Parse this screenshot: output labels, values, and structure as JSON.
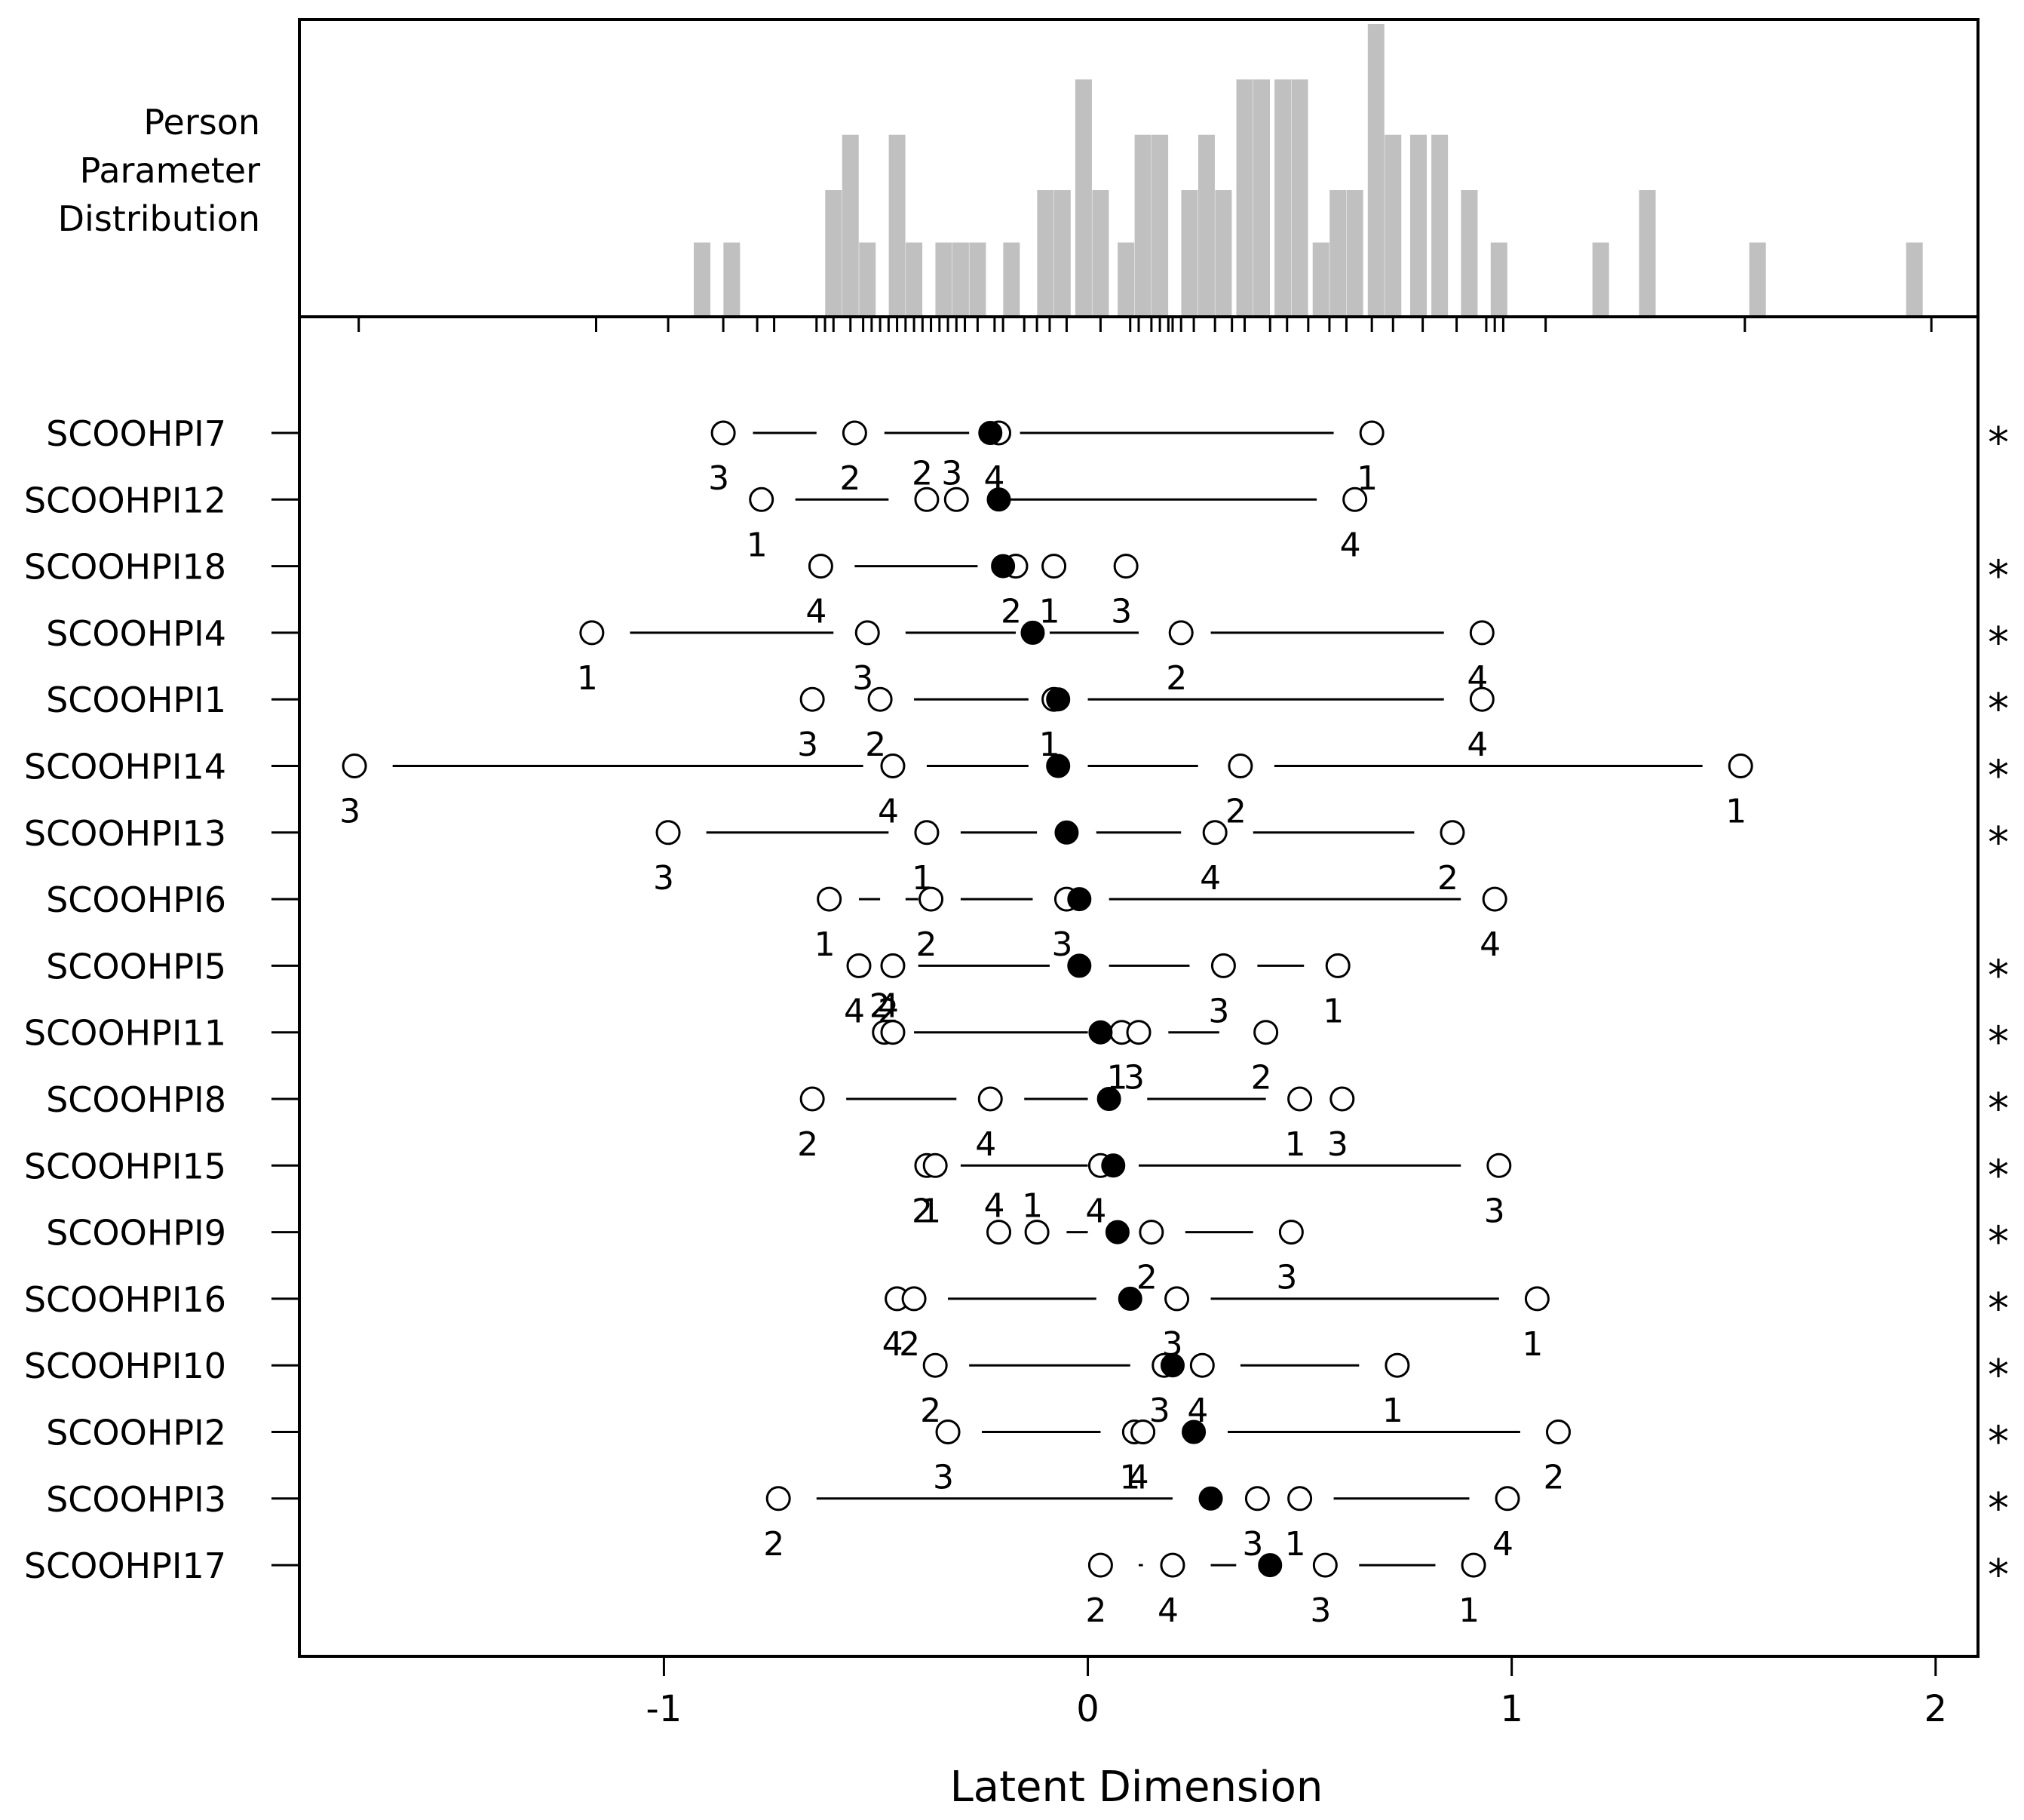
{
  "chart_data": {
    "type": "scatter",
    "title": "",
    "xlabel": "Latent Dimension",
    "ylabel": "",
    "xlim": [
      -1.86,
      2.1
    ],
    "xticks": [
      -1,
      0,
      1,
      2
    ],
    "person_parameter_label": [
      "Person",
      "Parameter",
      "Distribution"
    ],
    "person_distribution": [
      {
        "x": -0.91,
        "h": 0.25
      },
      {
        "x": -0.84,
        "h": 0.25
      },
      {
        "x": -0.6,
        "h": 0.43
      },
      {
        "x": -0.56,
        "h": 0.62
      },
      {
        "x": -0.52,
        "h": 0.25
      },
      {
        "x": -0.45,
        "h": 0.62
      },
      {
        "x": -0.41,
        "h": 0.25
      },
      {
        "x": -0.34,
        "h": 0.25
      },
      {
        "x": -0.3,
        "h": 0.25
      },
      {
        "x": -0.26,
        "h": 0.25
      },
      {
        "x": -0.18,
        "h": 0.25
      },
      {
        "x": -0.1,
        "h": 0.43
      },
      {
        "x": -0.06,
        "h": 0.43
      },
      {
        "x": -0.01,
        "h": 0.81
      },
      {
        "x": 0.03,
        "h": 0.43
      },
      {
        "x": 0.09,
        "h": 0.25
      },
      {
        "x": 0.13,
        "h": 0.62
      },
      {
        "x": 0.17,
        "h": 0.62
      },
      {
        "x": 0.24,
        "h": 0.43
      },
      {
        "x": 0.28,
        "h": 0.62
      },
      {
        "x": 0.32,
        "h": 0.43
      },
      {
        "x": 0.37,
        "h": 0.81
      },
      {
        "x": 0.41,
        "h": 0.81
      },
      {
        "x": 0.46,
        "h": 0.81
      },
      {
        "x": 0.5,
        "h": 0.81
      },
      {
        "x": 0.55,
        "h": 0.25
      },
      {
        "x": 0.59,
        "h": 0.43
      },
      {
        "x": 0.63,
        "h": 0.43
      },
      {
        "x": 0.68,
        "h": 1.0
      },
      {
        "x": 0.72,
        "h": 0.62
      },
      {
        "x": 0.78,
        "h": 0.62
      },
      {
        "x": 0.83,
        "h": 0.62
      },
      {
        "x": 0.9,
        "h": 0.43
      },
      {
        "x": 0.97,
        "h": 0.25
      },
      {
        "x": 1.21,
        "h": 0.25
      },
      {
        "x": 1.32,
        "h": 0.43
      },
      {
        "x": 1.58,
        "h": 0.25
      },
      {
        "x": 1.95,
        "h": 0.25
      }
    ],
    "person_ticks": [
      -1.72,
      -1.16,
      -0.99,
      -0.86,
      -0.78,
      -0.74,
      -0.64,
      -0.62,
      -0.6,
      -0.56,
      -0.53,
      -0.51,
      -0.49,
      -0.47,
      -0.45,
      -0.43,
      -0.41,
      -0.39,
      -0.37,
      -0.35,
      -0.33,
      -0.31,
      -0.29,
      -0.26,
      -0.22,
      -0.2,
      -0.15,
      -0.12,
      -0.09,
      -0.05,
      0.03,
      0.1,
      0.12,
      0.15,
      0.17,
      0.19,
      0.2,
      0.22,
      0.25,
      0.3,
      0.34,
      0.37,
      0.43,
      0.47,
      0.52,
      0.57,
      0.61,
      0.67,
      0.72,
      0.79,
      0.87,
      0.94,
      0.96,
      0.98,
      1.08,
      1.55,
      1.99
    ],
    "items": [
      {
        "name": "SCOOHPI7",
        "mean": -0.23,
        "star": true,
        "segments": [
          [
            -0.79,
            -0.64
          ],
          [
            -0.48,
            -0.28
          ],
          [
            -0.16,
            0.58
          ]
        ],
        "thresholds": [
          {
            "x": -0.86,
            "label": "3",
            "pos": "below"
          },
          {
            "x": -0.55,
            "label": "2",
            "pos": "below"
          },
          {
            "x": -0.21,
            "label": "4",
            "pos": "below"
          },
          {
            "x": 0.67,
            "label": "1",
            "pos": "below"
          }
        ]
      },
      {
        "name": "SCOOHPI12",
        "mean": -0.21,
        "star": false,
        "segments": [
          [
            -0.69,
            -0.47
          ],
          [
            -0.19,
            0.54
          ]
        ],
        "thresholds": [
          {
            "x": -0.77,
            "label": "1",
            "pos": "below"
          },
          {
            "x": -0.38,
            "label": "2",
            "pos": "above"
          },
          {
            "x": -0.31,
            "label": "3",
            "pos": "above"
          },
          {
            "x": 0.63,
            "label": "4",
            "pos": "below"
          }
        ]
      },
      {
        "name": "SCOOHPI18",
        "mean": -0.2,
        "star": true,
        "segments": [
          [
            -0.55,
            -0.26
          ]
        ],
        "thresholds": [
          {
            "x": -0.63,
            "label": "4",
            "pos": "below"
          },
          {
            "x": -0.17,
            "label": "2",
            "pos": "below"
          },
          {
            "x": -0.08,
            "label": "1",
            "pos": "below"
          },
          {
            "x": 0.09,
            "label": "3",
            "pos": "below"
          }
        ]
      },
      {
        "name": "SCOOHPI4",
        "mean": -0.13,
        "star": true,
        "segments": [
          [
            -1.08,
            -0.6
          ],
          [
            -0.43,
            -0.17
          ],
          [
            -0.09,
            0.12
          ],
          [
            0.29,
            0.84
          ]
        ],
        "thresholds": [
          {
            "x": -1.17,
            "label": "1",
            "pos": "below"
          },
          {
            "x": -0.52,
            "label": "3",
            "pos": "below"
          },
          {
            "x": 0.22,
            "label": "2",
            "pos": "below"
          },
          {
            "x": 0.93,
            "label": "4",
            "pos": "below"
          }
        ]
      },
      {
        "name": "SCOOHPI1",
        "mean": -0.07,
        "star": true,
        "segments": [
          [
            -0.41,
            -0.14
          ],
          [
            0.0,
            0.84
          ]
        ],
        "thresholds": [
          {
            "x": -0.65,
            "label": "3",
            "pos": "below"
          },
          {
            "x": -0.49,
            "label": "2",
            "pos": "below"
          },
          {
            "x": -0.08,
            "label": "1",
            "pos": "below"
          },
          {
            "x": 0.93,
            "label": "4",
            "pos": "below"
          }
        ]
      },
      {
        "name": "SCOOHPI14",
        "mean": -0.07,
        "star": true,
        "segments": [
          [
            -1.64,
            -0.53
          ],
          [
            -0.38,
            -0.14
          ],
          [
            0.0,
            0.26
          ],
          [
            0.44,
            1.45
          ]
        ],
        "thresholds": [
          {
            "x": -1.73,
            "label": "3",
            "pos": "below"
          },
          {
            "x": -0.46,
            "label": "4",
            "pos": "below"
          },
          {
            "x": 0.36,
            "label": "2",
            "pos": "below"
          },
          {
            "x": 1.54,
            "label": "1",
            "pos": "below"
          }
        ]
      },
      {
        "name": "SCOOHPI13",
        "mean": -0.05,
        "star": true,
        "segments": [
          [
            -0.9,
            -0.47
          ],
          [
            -0.3,
            -0.12
          ],
          [
            0.02,
            0.22
          ],
          [
            0.39,
            0.77
          ]
        ],
        "thresholds": [
          {
            "x": -0.99,
            "label": "3",
            "pos": "below"
          },
          {
            "x": -0.38,
            "label": "1",
            "pos": "below"
          },
          {
            "x": 0.3,
            "label": "4",
            "pos": "below"
          },
          {
            "x": 0.86,
            "label": "2",
            "pos": "below"
          }
        ]
      },
      {
        "name": "SCOOHPI6",
        "mean": -0.02,
        "star": false,
        "segments": [
          [
            -0.54,
            -0.49
          ],
          [
            -0.43,
            -0.4
          ],
          [
            -0.3,
            -0.13
          ],
          [
            0.05,
            0.88
          ]
        ],
        "thresholds": [
          {
            "x": -0.61,
            "label": "1",
            "pos": "below"
          },
          {
            "x": -0.37,
            "label": "2",
            "pos": "below"
          },
          {
            "x": -0.05,
            "label": "3",
            "pos": "below"
          },
          {
            "x": 0.96,
            "label": "4",
            "pos": "below"
          }
        ]
      },
      {
        "name": "SCOOHPI5",
        "mean": -0.02,
        "star": true,
        "segments": [
          [
            -0.4,
            -0.09
          ],
          [
            0.05,
            0.24
          ],
          [
            0.4,
            0.51
          ]
        ],
        "thresholds": [
          {
            "x": -0.54,
            "label": "4",
            "pos": "below"
          },
          {
            "x": -0.46,
            "label": "2",
            "pos": "below"
          },
          {
            "x": 0.32,
            "label": "3",
            "pos": "below"
          },
          {
            "x": 0.59,
            "label": "1",
            "pos": "below"
          }
        ]
      },
      {
        "name": "SCOOHPI11",
        "mean": 0.03,
        "star": true,
        "segments": [
          [
            -0.41,
            0.0
          ],
          [
            0.19,
            0.31
          ]
        ],
        "thresholds": [
          {
            "x": -0.48,
            "label": "2",
            "pos": "above"
          },
          {
            "x": -0.46,
            "label": "4",
            "pos": "above"
          },
          {
            "x": 0.08,
            "label": "1",
            "pos": "below"
          },
          {
            "x": 0.12,
            "label": "3",
            "pos": "below"
          },
          {
            "x": 0.42,
            "label": "2",
            "pos": "below"
          }
        ]
      },
      {
        "name": "SCOOHPI8",
        "mean": 0.05,
        "star": true,
        "segments": [
          [
            -0.57,
            -0.31
          ],
          [
            -0.15,
            0.0
          ],
          [
            0.14,
            0.42
          ]
        ],
        "thresholds": [
          {
            "x": -0.65,
            "label": "2",
            "pos": "below"
          },
          {
            "x": -0.23,
            "label": "4",
            "pos": "below"
          },
          {
            "x": 0.5,
            "label": "1",
            "pos": "below"
          },
          {
            "x": 0.6,
            "label": "3",
            "pos": "below"
          }
        ]
      },
      {
        "name": "SCOOHPI15",
        "mean": 0.06,
        "star": true,
        "segments": [
          [
            -0.3,
            0.0
          ],
          [
            0.12,
            0.88
          ]
        ],
        "thresholds": [
          {
            "x": -0.38,
            "label": "2",
            "pos": "below"
          },
          {
            "x": -0.36,
            "label": "1",
            "pos": "below"
          },
          {
            "x": 0.03,
            "label": "4",
            "pos": "below"
          },
          {
            "x": 0.97,
            "label": "3",
            "pos": "below"
          }
        ]
      },
      {
        "name": "SCOOHPI9",
        "mean": 0.07,
        "star": true,
        "segments": [
          [
            -0.05,
            0.0
          ],
          [
            0.23,
            0.39
          ]
        ],
        "thresholds": [
          {
            "x": -0.21,
            "label": "4",
            "pos": "above"
          },
          {
            "x": -0.12,
            "label": "1",
            "pos": "above"
          },
          {
            "x": 0.15,
            "label": "2",
            "pos": "below"
          },
          {
            "x": 0.48,
            "label": "3",
            "pos": "below"
          }
        ]
      },
      {
        "name": "SCOOHPI16",
        "mean": 0.1,
        "star": true,
        "segments": [
          [
            -0.33,
            0.02
          ],
          [
            0.29,
            0.97
          ]
        ],
        "thresholds": [
          {
            "x": -0.45,
            "label": "4",
            "pos": "below"
          },
          {
            "x": -0.41,
            "label": "2",
            "pos": "below"
          },
          {
            "x": 0.21,
            "label": "3",
            "pos": "below"
          },
          {
            "x": 1.06,
            "label": "1",
            "pos": "below"
          }
        ]
      },
      {
        "name": "SCOOHPI10",
        "mean": 0.2,
        "star": true,
        "segments": [
          [
            -0.28,
            0.1
          ],
          [
            0.36,
            0.64
          ]
        ],
        "thresholds": [
          {
            "x": -0.36,
            "label": "2",
            "pos": "below"
          },
          {
            "x": 0.18,
            "label": "3",
            "pos": "below"
          },
          {
            "x": 0.27,
            "label": "4",
            "pos": "below"
          },
          {
            "x": 0.73,
            "label": "1",
            "pos": "below"
          }
        ]
      },
      {
        "name": "SCOOHPI2",
        "mean": 0.25,
        "star": true,
        "segments": [
          [
            -0.25,
            0.03
          ],
          [
            0.33,
            1.02
          ]
        ],
        "thresholds": [
          {
            "x": -0.33,
            "label": "3",
            "pos": "below"
          },
          {
            "x": 0.11,
            "label": "1",
            "pos": "below"
          },
          {
            "x": 0.13,
            "label": "4",
            "pos": "below"
          },
          {
            "x": 1.11,
            "label": "2",
            "pos": "below"
          }
        ]
      },
      {
        "name": "SCOOHPI3",
        "mean": 0.29,
        "star": true,
        "segments": [
          [
            -0.64,
            0.2
          ],
          [
            0.58,
            0.9
          ]
        ],
        "thresholds": [
          {
            "x": -0.73,
            "label": "2",
            "pos": "below"
          },
          {
            "x": 0.4,
            "label": "3",
            "pos": "below"
          },
          {
            "x": 0.5,
            "label": "1",
            "pos": "below"
          },
          {
            "x": 0.99,
            "label": "4",
            "pos": "below"
          }
        ]
      },
      {
        "name": "SCOOHPI17",
        "mean": 0.43,
        "star": true,
        "segments": [
          [
            0.12,
            0.13
          ],
          [
            0.29,
            0.35
          ],
          [
            0.64,
            0.82
          ]
        ],
        "thresholds": [
          {
            "x": 0.03,
            "label": "2",
            "pos": "below"
          },
          {
            "x": 0.2,
            "label": "4",
            "pos": "below"
          },
          {
            "x": 0.56,
            "label": "3",
            "pos": "below"
          },
          {
            "x": 0.91,
            "label": "1",
            "pos": "below"
          }
        ]
      }
    ]
  }
}
